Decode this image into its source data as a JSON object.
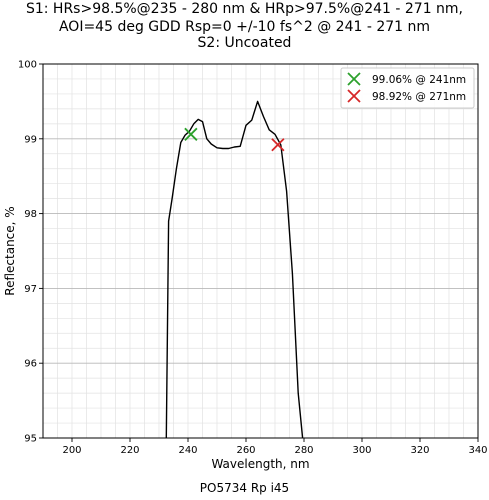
{
  "header": {
    "title_lines": [
      "S1: HRs>98.5%@235 - 280 nm & HRp>97.5%@241 - 271 nm,",
      "AOI=45 deg GDD Rsp=0 +/-10 fs^2 @ 241 - 271 nm",
      "S2: Uncoated"
    ]
  },
  "footer": {
    "caption": "PO5734 Rp i45"
  },
  "chart_data": {
    "type": "line",
    "xlabel": "Wavelength, nm",
    "ylabel": "Reflectance, %",
    "xlim": [
      190,
      340
    ],
    "ylim": [
      95,
      100
    ],
    "x_ticks": [
      200,
      220,
      240,
      260,
      280,
      300,
      320,
      340
    ],
    "y_ticks": [
      95,
      96,
      97,
      98,
      99,
      100
    ],
    "grid": "major and minor",
    "line_color": "#000000",
    "series": [
      {
        "x": [
          232.5,
          233.3,
          234.5,
          236,
          237.5,
          239,
          240.5,
          242,
          243.5,
          245,
          246.5,
          248,
          250,
          252,
          254,
          256,
          258,
          260,
          262,
          264,
          266,
          268,
          270,
          272,
          274,
          276,
          278,
          279.5
        ],
        "y": [
          95.0,
          97.9,
          98.2,
          98.6,
          98.95,
          99.05,
          99.1,
          99.2,
          99.26,
          99.23,
          99.0,
          98.93,
          98.88,
          98.87,
          98.87,
          98.89,
          98.9,
          99.18,
          99.25,
          99.5,
          99.3,
          99.12,
          99.06,
          98.92,
          98.3,
          97.2,
          95.6,
          95.0
        ]
      }
    ],
    "legend": {
      "position": "top-right",
      "entries": [
        {
          "label": "99.06% @ 241nm",
          "color": "#2ca02c",
          "marker": "x",
          "x": 241,
          "y": 99.06
        },
        {
          "label": "98.92% @ 271nm",
          "color": "#d62728",
          "marker": "x",
          "x": 271,
          "y": 98.92
        }
      ]
    }
  }
}
